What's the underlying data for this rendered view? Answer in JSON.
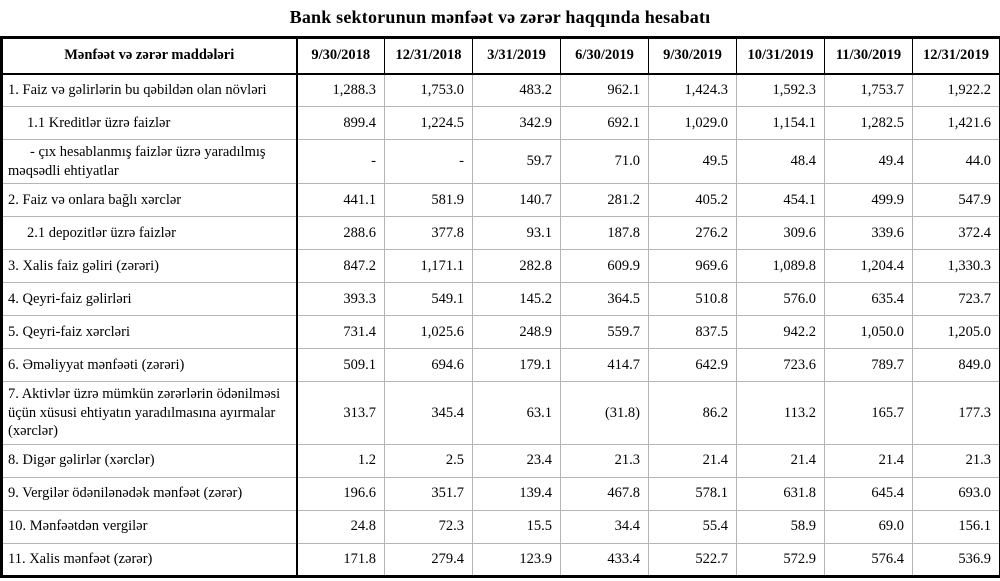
{
  "title": "Bank sektorunun mənfəət və zərər haqqında hesabatı",
  "colors": {
    "background": "#ffffff",
    "text": "#000000",
    "border_heavy": "#000000",
    "grid_light": "#b5b5b5"
  },
  "table": {
    "header": [
      "Mənfəət və zərər maddələri",
      "9/30/2018",
      "12/31/2018",
      "3/31/2019",
      "6/30/2019",
      "9/30/2019",
      "10/31/2019",
      "11/30/2019",
      "12/31/2019"
    ],
    "rows": [
      {
        "label": "1. Faiz və gəlirlərin bu qəbildən olan növləri",
        "indent": 0,
        "values": [
          "1,288.3",
          "1,753.0",
          "483.2",
          "962.1",
          "1,424.3",
          "1,592.3",
          "1,753.7",
          "1,922.2"
        ]
      },
      {
        "label": "1.1 Kreditlər üzrə faizlər",
        "indent": 1,
        "values": [
          "899.4",
          "1,224.5",
          "342.9",
          "692.1",
          "1,029.0",
          "1,154.1",
          "1,282.5",
          "1,421.6"
        ]
      },
      {
        "label": "- çıx hesablanmış faizlər üzrə yaradılmış məqsədli ehtiyatlar",
        "indent": 2,
        "values": [
          "-",
          "-",
          "59.7",
          "71.0",
          "49.5",
          "48.4",
          "49.4",
          "44.0"
        ]
      },
      {
        "label": "2. Faiz və onlara bağlı xərclər",
        "indent": 0,
        "values": [
          "441.1",
          "581.9",
          "140.7",
          "281.2",
          "405.2",
          "454.1",
          "499.9",
          "547.9"
        ]
      },
      {
        "label": "2.1 depozitlər üzrə faizlər",
        "indent": 1,
        "values": [
          "288.6",
          "377.8",
          "93.1",
          "187.8",
          "276.2",
          "309.6",
          "339.6",
          "372.4"
        ]
      },
      {
        "label": "3. Xalis faiz gəliri (zərəri)",
        "indent": 0,
        "values": [
          "847.2",
          "1,171.1",
          "282.8",
          "609.9",
          "969.6",
          "1,089.8",
          "1,204.4",
          "1,330.3"
        ]
      },
      {
        "label": "4. Qeyri-faiz gəlirləri",
        "indent": 0,
        "values": [
          "393.3",
          "549.1",
          "145.2",
          "364.5",
          "510.8",
          "576.0",
          "635.4",
          "723.7"
        ]
      },
      {
        "label": "5. Qeyri-faiz xərcləri",
        "indent": 0,
        "values": [
          "731.4",
          "1,025.6",
          "248.9",
          "559.7",
          "837.5",
          "942.2",
          "1,050.0",
          "1,205.0"
        ]
      },
      {
        "label": "6. Əməliyyat mənfəəti (zərəri)",
        "indent": 0,
        "values": [
          "509.1",
          "694.6",
          "179.1",
          "414.7",
          "642.9",
          "723.6",
          "789.7",
          "849.0"
        ]
      },
      {
        "label": "7. Aktivlər üzrə mümkün zərərlərin ödənilməsi üçün xüsusi ehtiyatın yaradılmasına ayırmalar (xərclər)",
        "indent": 0,
        "values": [
          "313.7",
          "345.4",
          "63.1",
          "(31.8)",
          "86.2",
          "113.2",
          "165.7",
          "177.3"
        ]
      },
      {
        "label": "8. Digər gəlirlər (xərclər)",
        "indent": 0,
        "values": [
          "1.2",
          "2.5",
          "23.4",
          "21.3",
          "21.4",
          "21.4",
          "21.4",
          "21.3"
        ]
      },
      {
        "label": "9. Vergilər ödənilənədək mənfəət (zərər)",
        "indent": 0,
        "values": [
          "196.6",
          "351.7",
          "139.4",
          "467.8",
          "578.1",
          "631.8",
          "645.4",
          "693.0"
        ]
      },
      {
        "label": "10. Mənfəətdən vergilər",
        "indent": 0,
        "values": [
          "24.8",
          "72.3",
          "15.5",
          "34.4",
          "55.4",
          "58.9",
          "69.0",
          "156.1"
        ]
      },
      {
        "label": "11. Xalis mənfəət (zərər)",
        "indent": 0,
        "values": [
          "171.8",
          "279.4",
          "123.9",
          "433.4",
          "522.7",
          "572.9",
          "576.4",
          "536.9"
        ]
      }
    ]
  }
}
